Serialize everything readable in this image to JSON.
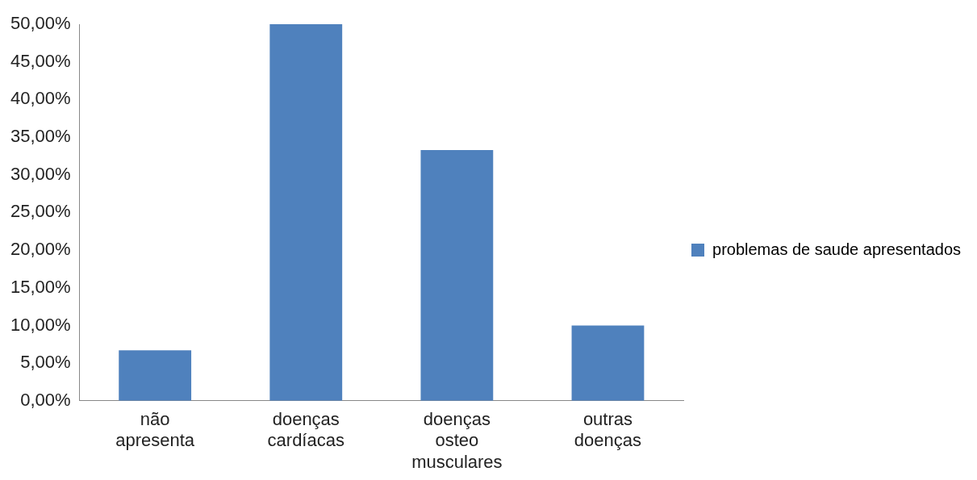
{
  "chart_data": {
    "type": "bar",
    "categories": [
      "não apresenta",
      "doenças cardíacas",
      "doenças osteo musculares",
      "outras doenças"
    ],
    "series": [
      {
        "name": "problemas de saude apresentados",
        "color": "#4f81bd",
        "values": [
          6.7,
          50,
          33.3,
          10
        ]
      }
    ],
    "ylim": [
      0,
      50
    ],
    "yticks": [
      {
        "value": 0,
        "label": "0,00%"
      },
      {
        "value": 5,
        "label": "5,00%"
      },
      {
        "value": 10,
        "label": "10,00%"
      },
      {
        "value": 15,
        "label": "15,00%"
      },
      {
        "value": 20,
        "label": "20,00%"
      },
      {
        "value": 25,
        "label": "25,00%"
      },
      {
        "value": 30,
        "label": "30,00%"
      },
      {
        "value": 35,
        "label": "35,00%"
      },
      {
        "value": 40,
        "label": "40,00%"
      },
      {
        "value": 45,
        "label": "45,00%"
      },
      {
        "value": 50,
        "label": "50,00%"
      }
    ],
    "grid": false,
    "legend": "right"
  }
}
